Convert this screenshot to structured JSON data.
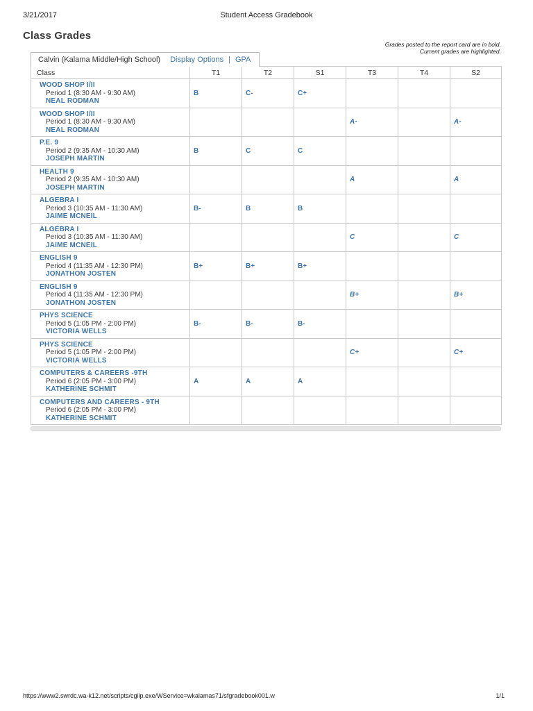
{
  "print_header": {
    "date": "3/21/2017",
    "title": "Student Access Gradebook"
  },
  "print_footer": {
    "url": "https://www2.swrdc.wa-k12.net/scripts/cgiip.exe/WService=wkalamas71/sfgradebook001.w",
    "page_number": "1/1"
  },
  "heading": "Class Grades",
  "notes": {
    "line1": "Grades posted to the report card are in bold.",
    "line2": "Current grades are highlighted."
  },
  "tab": {
    "student_label": "Calvin (Kalama Middle/High School)",
    "display_options_link": "Display Options",
    "separator": "|",
    "gpa_link": "GPA"
  },
  "table": {
    "columns": [
      "Class",
      "T1",
      "T2",
      "S1",
      "T3",
      "T4",
      "S2"
    ],
    "rows": [
      {
        "class_name": "WOOD SHOP I/II",
        "period": "Period 1",
        "time": "(8:30 AM - 9:30 AM)",
        "teacher": "NEAL RODMAN",
        "grades": {
          "t1": "B",
          "t2": "C-",
          "s1": "C+",
          "t3": "",
          "t4": "",
          "s2": ""
        },
        "italic": false
      },
      {
        "class_name": "WOOD SHOP I/II",
        "period": "Period 1",
        "time": "(8:30 AM - 9:30 AM)",
        "teacher": "NEAL RODMAN",
        "grades": {
          "t1": "",
          "t2": "",
          "s1": "",
          "t3": "A-",
          "t4": "",
          "s2": "A-"
        },
        "italic": true
      },
      {
        "class_name": "P.E. 9",
        "period": "Period 2",
        "time": "(9:35 AM - 10:30 AM)",
        "teacher": "JOSEPH MARTIN",
        "grades": {
          "t1": "B",
          "t2": "C",
          "s1": "C",
          "t3": "",
          "t4": "",
          "s2": ""
        },
        "italic": false
      },
      {
        "class_name": "HEALTH 9",
        "period": "Period 2",
        "time": "(9:35 AM - 10:30 AM)",
        "teacher": "JOSEPH MARTIN",
        "grades": {
          "t1": "",
          "t2": "",
          "s1": "",
          "t3": "A",
          "t4": "",
          "s2": "A"
        },
        "italic": true
      },
      {
        "class_name": "ALGEBRA I",
        "period": "Period 3",
        "time": "(10:35 AM - 11:30 AM)",
        "teacher": "JAIME MCNEIL",
        "grades": {
          "t1": "B-",
          "t2": "B",
          "s1": "B",
          "t3": "",
          "t4": "",
          "s2": ""
        },
        "italic": false
      },
      {
        "class_name": "ALGEBRA I",
        "period": "Period 3",
        "time": "(10:35 AM - 11:30 AM)",
        "teacher": "JAIME MCNEIL",
        "grades": {
          "t1": "",
          "t2": "",
          "s1": "",
          "t3": "C",
          "t4": "",
          "s2": "C"
        },
        "italic": true
      },
      {
        "class_name": "ENGLISH 9",
        "period": "Period 4",
        "time": "(11:35 AM - 12:30 PM)",
        "teacher": "JONATHON JOSTEN",
        "grades": {
          "t1": "B+",
          "t2": "B+",
          "s1": "B+",
          "t3": "",
          "t4": "",
          "s2": ""
        },
        "italic": false
      },
      {
        "class_name": "ENGLISH 9",
        "period": "Period 4",
        "time": "(11:35 AM - 12:30 PM)",
        "teacher": "JONATHON JOSTEN",
        "grades": {
          "t1": "",
          "t2": "",
          "s1": "",
          "t3": "B+",
          "t4": "",
          "s2": "B+"
        },
        "italic": true
      },
      {
        "class_name": "PHYS SCIENCE",
        "period": "Period 5",
        "time": "(1:05 PM - 2:00 PM)",
        "teacher": "VICTORIA WELLS",
        "grades": {
          "t1": "B-",
          "t2": "B-",
          "s1": "B-",
          "t3": "",
          "t4": "",
          "s2": ""
        },
        "italic": false
      },
      {
        "class_name": "PHYS SCIENCE",
        "period": "Period 5",
        "time": "(1:05 PM - 2:00 PM)",
        "teacher": "VICTORIA WELLS",
        "grades": {
          "t1": "",
          "t2": "",
          "s1": "",
          "t3": "C+",
          "t4": "",
          "s2": "C+"
        },
        "italic": true
      },
      {
        "class_name": "COMPUTERS & CAREERS -9TH",
        "period": "Period 6",
        "time": "(2:05 PM - 3:00 PM)",
        "teacher": "KATHERINE SCHMIT",
        "grades": {
          "t1": "A",
          "t2": "A",
          "s1": "A",
          "t3": "",
          "t4": "",
          "s2": ""
        },
        "italic": false
      },
      {
        "class_name": "COMPUTERS AND CAREERS - 9TH",
        "period": "Period 6",
        "time": "(2:05 PM - 3:00 PM)",
        "teacher": "KATHERINE SCHMIT",
        "grades": {
          "t1": "",
          "t2": "",
          "s1": "",
          "t3": "",
          "t4": "",
          "s2": ""
        },
        "italic": false
      }
    ]
  },
  "colors": {
    "link_blue": "#3B74AC",
    "text_dark": "#333333",
    "table_border": "#C9C9C9",
    "bottom_bar_gray": "#E6E6E6"
  }
}
